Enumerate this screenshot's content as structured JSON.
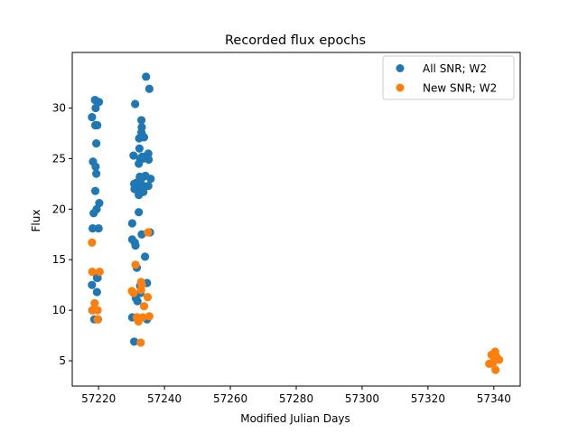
{
  "chart_data": {
    "type": "scatter",
    "title": "Recorded flux epochs",
    "xlabel": "Modified Julian Days",
    "ylabel": "Flux",
    "xlim": [
      57212,
      57348
    ],
    "ylim": [
      2.5,
      35.5
    ],
    "xticks": [
      57220,
      57240,
      57260,
      57280,
      57300,
      57320,
      57340
    ],
    "yticks": [
      5,
      10,
      15,
      20,
      25,
      30
    ],
    "grid": false,
    "legend_position": "top-right",
    "series": [
      {
        "name": "All SNR; W2",
        "color": "#1f77b4",
        "points": [
          [
            57218.0,
            29.1
          ],
          [
            57218.9,
            30.8
          ],
          [
            57219.1,
            30.0
          ],
          [
            57219.0,
            28.3
          ],
          [
            57219.6,
            28.3
          ],
          [
            57220.1,
            30.6
          ],
          [
            57219.3,
            26.5
          ],
          [
            57218.3,
            24.7
          ],
          [
            57219.1,
            24.2
          ],
          [
            57219.3,
            23.5
          ],
          [
            57219.0,
            21.8
          ],
          [
            57220.2,
            20.6
          ],
          [
            57219.4,
            20.0
          ],
          [
            57218.5,
            19.6
          ],
          [
            57218.2,
            18.1
          ],
          [
            57220.0,
            18.1
          ],
          [
            57219.5,
            13.2
          ],
          [
            57219.7,
            13.2
          ],
          [
            57218.0,
            12.5
          ],
          [
            57219.5,
            11.8
          ],
          [
            57218.1,
            10.0
          ],
          [
            57218.7,
            9.1
          ],
          [
            57219.8,
            9.1
          ],
          [
            57231.1,
            30.4
          ],
          [
            57230.6,
            25.3
          ],
          [
            57232.6,
            25.0
          ],
          [
            57233.0,
            28.8
          ],
          [
            57233.1,
            28.1
          ],
          [
            57233.0,
            27.6
          ],
          [
            57232.3,
            27.0
          ],
          [
            57233.3,
            27.3
          ],
          [
            57233.8,
            27.1
          ],
          [
            57232.4,
            26.0
          ],
          [
            57233.3,
            25.2
          ],
          [
            57233.6,
            25.0
          ],
          [
            57235.1,
            25.5
          ],
          [
            57235.2,
            24.9
          ],
          [
            57232.2,
            24.5
          ],
          [
            57232.5,
            23.2
          ],
          [
            57233.2,
            23.1
          ],
          [
            57234.2,
            23.3
          ],
          [
            57235.8,
            23.0
          ],
          [
            57230.8,
            22.5
          ],
          [
            57231.4,
            22.6
          ],
          [
            57230.9,
            22.0
          ],
          [
            57231.6,
            21.9
          ],
          [
            57232.3,
            22.1
          ],
          [
            57233.2,
            22.4
          ],
          [
            57233.6,
            21.7
          ],
          [
            57232.2,
            21.4
          ],
          [
            57235.1,
            22.3
          ],
          [
            57232.2,
            19.7
          ],
          [
            57230.2,
            18.6
          ],
          [
            57233.1,
            17.5
          ],
          [
            57235.6,
            17.7
          ],
          [
            57230.2,
            17.0
          ],
          [
            57231.0,
            16.7
          ],
          [
            57231.2,
            16.4
          ],
          [
            57234.1,
            15.3
          ],
          [
            57231.6,
            14.2
          ],
          [
            57234.7,
            12.7
          ],
          [
            57232.6,
            12.4
          ],
          [
            57231.3,
            11.2
          ],
          [
            57231.8,
            10.9
          ],
          [
            57232.7,
            11.7
          ],
          [
            57230.2,
            9.3
          ],
          [
            57231.7,
            9.3
          ],
          [
            57234.7,
            9.1
          ],
          [
            57230.8,
            6.9
          ],
          [
            57234.4,
            33.1
          ],
          [
            57235.4,
            31.9
          ]
        ]
      },
      {
        "name": "New SNR; W2",
        "color": "#ff7f0e",
        "points": [
          [
            57218.0,
            16.7
          ],
          [
            57218.1,
            13.8
          ],
          [
            57220.3,
            13.8
          ],
          [
            57218.8,
            10.7
          ],
          [
            57218.2,
            10.0
          ],
          [
            57219.7,
            10.0
          ],
          [
            57219.7,
            9.1
          ],
          [
            57235.0,
            17.7
          ],
          [
            57231.2,
            14.5
          ],
          [
            57230.1,
            11.9
          ],
          [
            57230.6,
            11.7
          ],
          [
            57232.9,
            12.8
          ],
          [
            57233.1,
            12.5
          ],
          [
            57232.9,
            12.0
          ],
          [
            57234.9,
            11.3
          ],
          [
            57233.8,
            10.4
          ],
          [
            57231.6,
            9.3
          ],
          [
            57232.1,
            8.9
          ],
          [
            57233.4,
            9.3
          ],
          [
            57235.4,
            9.4
          ],
          [
            57232.8,
            6.8
          ],
          [
            57338.6,
            4.7
          ],
          [
            57339.3,
            5.6
          ],
          [
            57339.8,
            4.9
          ],
          [
            57340.4,
            5.9
          ],
          [
            57340.8,
            5.4
          ],
          [
            57341.6,
            5.1
          ],
          [
            57340.5,
            4.1
          ],
          [
            57339.6,
            4.7
          ]
        ]
      }
    ]
  }
}
